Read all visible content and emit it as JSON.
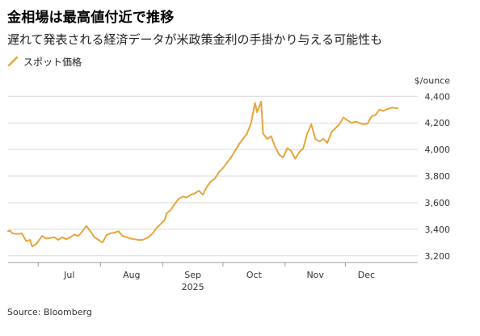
{
  "header": {
    "title": "金相場は最高値付近で推移",
    "subtitle": "遅れて発表される経済データが米政策金利の手掛かり与える可能性も"
  },
  "footer": {
    "source": "Source: Bloomberg"
  },
  "colors": {
    "series": "#e8a53a",
    "grid": "#d9d9d9",
    "axis": "#999999"
  },
  "chart_data": {
    "type": "line",
    "title": "金相場は最高値付近で推移",
    "subtitle": "遅れて発表される経済データが米政策金利の手掛かり与える可能性も",
    "unit": "$/ounce",
    "year_label": "2025",
    "x_tick_labels": [
      "Jul",
      "Aug",
      "Sep",
      "Oct",
      "Nov",
      "Dec"
    ],
    "x_tick_dates": [
      "2025-07-01",
      "2025-08-01",
      "2025-09-01",
      "2025-10-01",
      "2025-11-01",
      "2025-12-01"
    ],
    "xlim": [
      "2025-06-16",
      "2025-12-31"
    ],
    "ylim": [
      3150,
      4420
    ],
    "y_ticks": [
      3200,
      3400,
      3600,
      3800,
      4000,
      4200,
      4400
    ],
    "y_tick_labels": [
      "3,200",
      "3,400",
      "3,600",
      "3,800",
      "4,000",
      "4,200",
      "4,400"
    ],
    "grid": true,
    "legend": {
      "position": "top-left"
    },
    "series": [
      {
        "name": "スポット価格",
        "x": [
          "2025-06-16",
          "2025-06-17",
          "2025-06-18",
          "2025-06-20",
          "2025-06-23",
          "2025-06-25",
          "2025-06-27",
          "2025-06-28",
          "2025-06-30",
          "2025-07-01",
          "2025-07-03",
          "2025-07-05",
          "2025-07-07",
          "2025-07-09",
          "2025-07-11",
          "2025-07-13",
          "2025-07-15",
          "2025-07-17",
          "2025-07-19",
          "2025-07-21",
          "2025-07-23",
          "2025-07-25",
          "2025-07-27",
          "2025-07-29",
          "2025-07-31",
          "2025-08-02",
          "2025-08-04",
          "2025-08-06",
          "2025-08-08",
          "2025-08-10",
          "2025-08-12",
          "2025-08-14",
          "2025-08-16",
          "2025-08-18",
          "2025-08-20",
          "2025-08-22",
          "2025-08-25",
          "2025-08-27",
          "2025-08-29",
          "2025-08-31",
          "2025-09-02",
          "2025-09-03",
          "2025-09-05",
          "2025-09-07",
          "2025-09-09",
          "2025-09-11",
          "2025-09-13",
          "2025-09-15",
          "2025-09-17",
          "2025-09-19",
          "2025-09-21",
          "2025-09-23",
          "2025-09-25",
          "2025-09-27",
          "2025-09-29",
          "2025-10-01",
          "2025-10-03",
          "2025-10-05",
          "2025-10-07",
          "2025-10-09",
          "2025-10-11",
          "2025-10-13",
          "2025-10-15",
          "2025-10-17",
          "2025-10-18",
          "2025-10-20",
          "2025-10-21",
          "2025-10-23",
          "2025-10-25",
          "2025-10-27",
          "2025-10-29",
          "2025-10-31",
          "2025-11-02",
          "2025-11-04",
          "2025-11-06",
          "2025-11-08",
          "2025-11-10",
          "2025-11-12",
          "2025-11-14",
          "2025-11-16",
          "2025-11-18",
          "2025-11-20",
          "2025-11-22",
          "2025-11-24",
          "2025-11-26",
          "2025-11-28",
          "2025-11-30",
          "2025-12-02",
          "2025-12-04",
          "2025-12-06",
          "2025-12-08",
          "2025-12-10",
          "2025-12-12",
          "2025-12-14",
          "2025-12-16",
          "2025-12-18",
          "2025-12-20",
          "2025-12-22",
          "2025-12-24",
          "2025-12-27"
        ],
        "values": [
          3385,
          3390,
          3370,
          3365,
          3367,
          3310,
          3320,
          3270,
          3290,
          3310,
          3350,
          3330,
          3335,
          3340,
          3320,
          3340,
          3325,
          3340,
          3360,
          3350,
          3385,
          3425,
          3385,
          3340,
          3320,
          3300,
          3355,
          3370,
          3375,
          3385,
          3350,
          3340,
          3330,
          3325,
          3320,
          3320,
          3340,
          3370,
          3410,
          3440,
          3470,
          3520,
          3545,
          3590,
          3630,
          3645,
          3640,
          3660,
          3670,
          3690,
          3660,
          3720,
          3760,
          3780,
          3830,
          3860,
          3900,
          3940,
          3990,
          4040,
          4080,
          4120,
          4200,
          4350,
          4280,
          4360,
          4120,
          4080,
          4100,
          4020,
          3960,
          3940,
          4010,
          3990,
          3930,
          3980,
          4010,
          4120,
          4190,
          4080,
          4060,
          4080,
          4050,
          4130,
          4160,
          4190,
          4240,
          4220,
          4200,
          4210,
          4200,
          4190,
          4195,
          4250,
          4260,
          4300,
          4290,
          4305,
          4315,
          4310
        ]
      }
    ]
  }
}
